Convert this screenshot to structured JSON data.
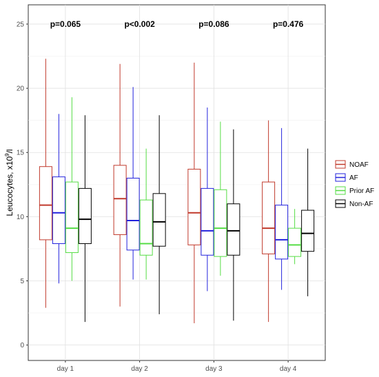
{
  "chart_data": {
    "type": "boxplot",
    "ylabel": "Leucocytes, x10",
    "ylabel_sup": "9",
    "ylabel_unit": "/l",
    "xlabel": "",
    "ylim": [
      -1.2,
      26.5
    ],
    "yticks": [
      0,
      5,
      10,
      15,
      20,
      25
    ],
    "grid": true,
    "legend_position": "right",
    "categories": [
      "day 1",
      "day 2",
      "day 3",
      "day 4"
    ],
    "p_values": [
      "p=0.065",
      "p<0.002",
      "p=0.086",
      "p=0.476"
    ],
    "series": [
      {
        "name": "NOAF",
        "color": "#c0392b",
        "boxes": [
          {
            "min": 2.9,
            "q1": 8.2,
            "median": 10.9,
            "q3": 13.9,
            "max": 22.3
          },
          {
            "min": 3.0,
            "q1": 8.6,
            "median": 11.4,
            "q3": 14.0,
            "max": 21.9
          },
          {
            "min": 1.7,
            "q1": 7.8,
            "median": 10.3,
            "q3": 13.7,
            "max": 22.0
          },
          {
            "min": 1.8,
            "q1": 7.1,
            "median": 9.1,
            "q3": 12.7,
            "max": 17.5
          }
        ]
      },
      {
        "name": "AF",
        "color": "#2222dd",
        "boxes": [
          {
            "min": 4.8,
            "q1": 7.9,
            "median": 10.3,
            "q3": 13.1,
            "max": 18.0
          },
          {
            "min": 5.1,
            "q1": 7.4,
            "median": 9.7,
            "q3": 13.0,
            "max": 20.1
          },
          {
            "min": 4.2,
            "q1": 7.0,
            "median": 8.9,
            "q3": 12.2,
            "max": 18.5
          },
          {
            "min": 4.3,
            "q1": 6.7,
            "median": 8.2,
            "q3": 10.9,
            "max": 16.9
          }
        ]
      },
      {
        "name": "Prior AF",
        "color": "#55dd44",
        "boxes": [
          {
            "min": 5.0,
            "q1": 7.2,
            "median": 9.1,
            "q3": 12.7,
            "max": 19.3
          },
          {
            "min": 5.1,
            "q1": 7.0,
            "median": 7.9,
            "q3": 11.3,
            "max": 15.3
          },
          {
            "min": 5.4,
            "q1": 6.9,
            "median": 9.1,
            "q3": 12.1,
            "max": 17.4
          },
          {
            "min": 6.3,
            "q1": 6.9,
            "median": 7.8,
            "q3": 9.1,
            "max": 10.6
          }
        ]
      },
      {
        "name": "Non-AF",
        "color": "#000000",
        "boxes": [
          {
            "min": 1.8,
            "q1": 7.9,
            "median": 9.8,
            "q3": 12.2,
            "max": 17.9
          },
          {
            "min": 2.4,
            "q1": 7.7,
            "median": 9.6,
            "q3": 11.8,
            "max": 17.9
          },
          {
            "min": 1.9,
            "q1": 7.0,
            "median": 8.9,
            "q3": 11.0,
            "max": 16.8
          },
          {
            "min": 3.8,
            "q1": 7.3,
            "median": 8.7,
            "q3": 10.5,
            "max": 15.3
          }
        ]
      }
    ]
  }
}
